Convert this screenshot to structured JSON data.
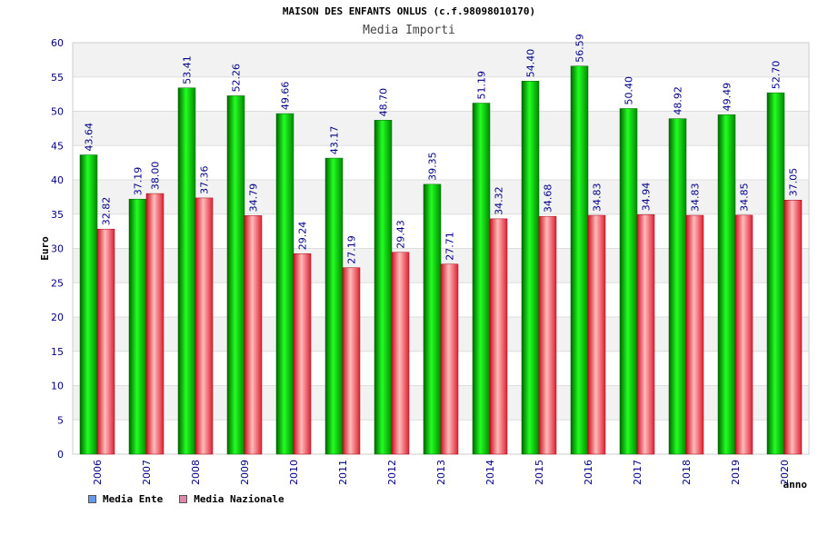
{
  "chart_data": {
    "type": "bar",
    "title": "MAISON DES ENFANTS ONLUS (c.f.98098010170)",
    "subtitle": "Media Importi",
    "ylabel": "Euro",
    "xlabel": "anno",
    "ylim": [
      0,
      60
    ],
    "ytick_step": 5,
    "grid": true,
    "legend_position": "bottom-left",
    "categories": [
      "2006",
      "2007",
      "2008",
      "2009",
      "2010",
      "2011",
      "2012",
      "2013",
      "2014",
      "2015",
      "2016",
      "2017",
      "2018",
      "2019",
      "2020"
    ],
    "series": [
      {
        "name": "Media Ente",
        "color": "#00aa00",
        "legend_color": "#6699ee",
        "values": [
          43.64,
          37.19,
          53.41,
          52.26,
          49.66,
          43.17,
          48.7,
          39.35,
          51.19,
          54.4,
          56.59,
          50.4,
          48.92,
          49.49,
          52.7
        ],
        "labels": [
          "43.64",
          "37.19",
          "53.41",
          "52.26",
          "49.66",
          "43.17",
          "48.70",
          "39.35",
          "51.19",
          "54.40",
          "56.59",
          "50.40",
          "48.92",
          "49.49",
          "52.70"
        ]
      },
      {
        "name": "Media Nazionale",
        "color": "#ee2233",
        "legend_color": "#dd88aa",
        "values": [
          32.82,
          38.0,
          37.36,
          34.79,
          29.24,
          27.19,
          29.43,
          27.71,
          34.32,
          34.68,
          34.83,
          34.94,
          34.83,
          34.85,
          37.05
        ],
        "labels": [
          "32.82",
          "38.00",
          "37.36",
          "34.79",
          "29.24",
          "27.19",
          "29.43",
          "27.71",
          "34.32",
          "34.68",
          "34.83",
          "34.94",
          "34.83",
          "34.85",
          "37.05"
        ]
      }
    ]
  }
}
